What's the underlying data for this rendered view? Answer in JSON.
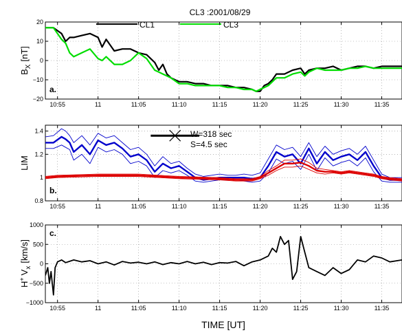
{
  "colors": {
    "cl1": "#000000",
    "cl3": "#00dd00",
    "lim_blue": "#0000cc",
    "lim_red": "#dd0000",
    "vx": "#000000",
    "grid": "#888888"
  },
  "chart_data": [
    {
      "type": "line",
      "panel_label": "a.",
      "title": "CL3 :2001/08/29",
      "ylabel": "B_X [nT]",
      "ylabel_main": "B",
      "ylabel_sub": "X",
      "ylabel_unit": "[nT]",
      "ylim": [
        -20,
        20
      ],
      "yticks": [
        "20",
        "10",
        "0",
        "−10",
        "−20"
      ],
      "ytick_values": [
        20,
        10,
        0,
        -10,
        -20
      ],
      "xticks": [
        "10:55",
        "11",
        "11:05",
        "11:10",
        "11:15",
        "11:20",
        "11:25",
        "11:30",
        "11:35"
      ],
      "xtick_values": [
        0,
        5,
        10,
        15,
        20,
        25,
        30,
        35,
        40
      ],
      "xlim": [
        -1.5,
        42.5
      ],
      "x_unit": "minutes after 10:55 UT",
      "grid": true,
      "legend": [
        "CL1",
        "CL3"
      ],
      "series": [
        {
          "name": "CL1",
          "x": [
            -1.5,
            -0.5,
            0.5,
            1.0,
            1.5,
            2.0,
            3.0,
            4.0,
            5.0,
            5.5,
            6.0,
            7.0,
            8.0,
            9.0,
            10.0,
            11.0,
            12.0,
            12.5,
            13.0,
            13.5,
            14.0,
            15.0,
            16.0,
            17.0,
            18.0,
            19.0,
            20.0,
            21.0,
            22.0,
            23.0,
            24.0,
            24.5,
            25.0,
            25.5,
            26.0,
            26.5,
            27.0,
            28.0,
            29.0,
            30.0,
            30.5,
            31.0,
            32.0,
            33.0,
            34.0,
            35.0,
            36.0,
            37.0,
            38.0,
            39.0,
            40.0,
            41.0,
            42.5
          ],
          "values": [
            17,
            17,
            14,
            10,
            12,
            12,
            13,
            14,
            12,
            7,
            11,
            5,
            6,
            6,
            4,
            3,
            -1,
            -5,
            -2,
            -7,
            -9,
            -11,
            -11,
            -12,
            -12,
            -13,
            -13,
            -13,
            -14,
            -14,
            -15,
            -16,
            -16,
            -13,
            -12,
            -10,
            -7,
            -7,
            -5,
            -4,
            -7,
            -5,
            -4,
            -4,
            -3,
            -5,
            -4,
            -3,
            -3,
            -4,
            -3,
            -3,
            -3
          ]
        },
        {
          "name": "CL3",
          "x": [
            -1.5,
            -0.5,
            0.5,
            1.0,
            1.5,
            2.0,
            3.0,
            4.0,
            5.0,
            5.5,
            6.0,
            7.0,
            8.0,
            9.0,
            10.0,
            11.0,
            12.0,
            12.5,
            13.0,
            13.5,
            14.0,
            15.0,
            16.0,
            17.0,
            18.0,
            19.0,
            20.0,
            21.0,
            22.0,
            23.0,
            24.0,
            24.5,
            25.0,
            25.5,
            26.0,
            26.5,
            27.0,
            28.0,
            29.0,
            30.0,
            30.5,
            31.0,
            32.0,
            33.0,
            34.0,
            35.0,
            36.0,
            37.0,
            38.0,
            39.0,
            40.0,
            41.0,
            42.5
          ],
          "values": [
            17,
            17,
            11,
            9,
            4,
            2,
            4,
            6,
            1,
            0,
            2,
            -2,
            -2,
            0,
            4,
            1,
            -5,
            -6,
            -7,
            -8,
            -9,
            -12,
            -12,
            -13,
            -13,
            -13,
            -13,
            -14,
            -14,
            -15,
            -15,
            -16,
            -15,
            -14,
            -13,
            -11,
            -9,
            -9,
            -7,
            -6,
            -8,
            -6,
            -4,
            -5,
            -5,
            -5,
            -4,
            -4,
            -3,
            -4,
            -4,
            -4,
            -4
          ]
        }
      ]
    },
    {
      "type": "line",
      "panel_label": "b.",
      "ylabel": "LIM",
      "ylim": [
        0.8,
        1.45
      ],
      "yticks": [
        "1.4",
        "1.2",
        "1",
        "0.8"
      ],
      "ytick_values": [
        1.4,
        1.2,
        1.0,
        0.8
      ],
      "xticks": [
        "10:55",
        "11",
        "11:05",
        "11:10",
        "11:15",
        "11:20",
        "11:25",
        "11:30",
        "11:35"
      ],
      "xtick_values": [
        0,
        5,
        10,
        15,
        20,
        25,
        30,
        35,
        40
      ],
      "xlim": [
        -1.5,
        42.5
      ],
      "grid": true,
      "annotations": [
        "W=318 sec",
        "S=4.5 sec"
      ],
      "window_bar": {
        "x_start": 11.5,
        "x_end": 17.5,
        "y": 1.36
      },
      "series": [
        {
          "name": "",
          "role": "blue-main",
          "x": [
            -1.5,
            -0.5,
            0.5,
            1.0,
            1.5,
            2.0,
            3.0,
            4.0,
            5.0,
            6.0,
            7.0,
            8.0,
            9.0,
            10.0,
            11.0,
            12.0,
            13.0,
            14.0,
            15.0,
            16.0,
            17.0,
            18.0,
            19.0,
            20.0,
            21.0,
            22.0,
            23.0,
            24.0,
            25.0,
            26.0,
            27.0,
            28.0,
            29.0,
            30.0,
            31.0,
            32.0,
            33.0,
            34.0,
            35.0,
            36.0,
            37.0,
            38.0,
            39.0,
            40.0,
            41.0,
            42.5
          ],
          "values": [
            1.3,
            1.3,
            1.35,
            1.33,
            1.3,
            1.22,
            1.28,
            1.2,
            1.32,
            1.28,
            1.3,
            1.25,
            1.18,
            1.2,
            1.15,
            1.05,
            1.12,
            1.08,
            1.1,
            1.05,
            1.0,
            0.98,
            0.99,
            1.0,
            1.0,
            1.0,
            1.0,
            0.99,
            1.0,
            1.1,
            1.22,
            1.18,
            1.2,
            1.12,
            1.25,
            1.12,
            1.22,
            1.15,
            1.18,
            1.2,
            1.15,
            1.22,
            1.1,
            1.0,
            0.98,
            0.98
          ]
        },
        {
          "name": "",
          "role": "blue-upper",
          "x": [
            -1.5,
            -0.5,
            0.5,
            1.0,
            1.5,
            2.0,
            3.0,
            4.0,
            5.0,
            6.0,
            7.0,
            8.0,
            9.0,
            10.0,
            11.0,
            12.0,
            13.0,
            14.0,
            15.0,
            16.0,
            17.0,
            18.0,
            19.0,
            20.0,
            21.0,
            22.0,
            23.0,
            24.0,
            25.0,
            26.0,
            27.0,
            28.0,
            29.0,
            30.0,
            31.0,
            32.0,
            33.0,
            34.0,
            35.0,
            36.0,
            37.0,
            38.0,
            39.0,
            40.0,
            41.0,
            42.5
          ],
          "values": [
            1.35,
            1.36,
            1.42,
            1.4,
            1.36,
            1.3,
            1.36,
            1.28,
            1.38,
            1.34,
            1.36,
            1.3,
            1.24,
            1.26,
            1.2,
            1.1,
            1.18,
            1.12,
            1.14,
            1.08,
            1.03,
            1.01,
            1.02,
            1.03,
            1.02,
            1.02,
            1.03,
            1.02,
            1.04,
            1.16,
            1.28,
            1.24,
            1.26,
            1.18,
            1.3,
            1.18,
            1.27,
            1.2,
            1.23,
            1.25,
            1.2,
            1.27,
            1.15,
            1.03,
            1.0,
            1.0
          ]
        },
        {
          "name": "",
          "role": "blue-lower",
          "x": [
            -1.5,
            -0.5,
            0.5,
            1.0,
            1.5,
            2.0,
            3.0,
            4.0,
            5.0,
            6.0,
            7.0,
            8.0,
            9.0,
            10.0,
            11.0,
            12.0,
            13.0,
            14.0,
            15.0,
            16.0,
            17.0,
            18.0,
            19.0,
            20.0,
            21.0,
            22.0,
            23.0,
            24.0,
            25.0,
            26.0,
            27.0,
            28.0,
            29.0,
            30.0,
            31.0,
            32.0,
            33.0,
            34.0,
            35.0,
            36.0,
            37.0,
            38.0,
            39.0,
            40.0,
            41.0,
            42.5
          ],
          "values": [
            1.25,
            1.25,
            1.28,
            1.26,
            1.24,
            1.15,
            1.2,
            1.12,
            1.26,
            1.22,
            1.24,
            1.2,
            1.12,
            1.14,
            1.1,
            1.0,
            1.06,
            1.04,
            1.06,
            1.02,
            0.97,
            0.96,
            0.97,
            0.98,
            0.98,
            0.98,
            0.97,
            0.96,
            0.97,
            1.04,
            1.16,
            1.12,
            1.14,
            1.07,
            1.2,
            1.06,
            1.17,
            1.1,
            1.13,
            1.15,
            1.1,
            1.17,
            1.05,
            0.97,
            0.96,
            0.96
          ]
        },
        {
          "name": "",
          "role": "red-main",
          "x": [
            -1.5,
            0,
            5,
            10,
            15,
            20,
            22,
            24,
            25,
            26,
            27,
            28,
            29,
            30,
            31,
            32,
            33,
            34,
            35,
            36,
            37,
            38,
            39,
            40,
            41,
            42.5
          ],
          "values": [
            1.0,
            1.01,
            1.02,
            1.02,
            1.0,
            0.99,
            0.98,
            0.98,
            1.0,
            1.04,
            1.08,
            1.12,
            1.12,
            1.13,
            1.1,
            1.06,
            1.05,
            1.05,
            1.04,
            1.05,
            1.04,
            1.03,
            1.02,
            1.0,
            0.99,
            0.98
          ]
        },
        {
          "name": "",
          "role": "red-upper",
          "x": [
            -1.5,
            0,
            5,
            10,
            15,
            20,
            22,
            24,
            25,
            26,
            27,
            28,
            29,
            30,
            31,
            32,
            33,
            34,
            35,
            36,
            37,
            38,
            39,
            40,
            41,
            42.5
          ],
          "values": [
            1.01,
            1.02,
            1.03,
            1.03,
            1.01,
            1.0,
            0.99,
            0.99,
            1.01,
            1.06,
            1.1,
            1.15,
            1.15,
            1.16,
            1.13,
            1.08,
            1.07,
            1.06,
            1.05,
            1.06,
            1.05,
            1.04,
            1.03,
            1.01,
            1.0,
            0.99
          ]
        },
        {
          "name": "",
          "role": "red-lower",
          "x": [
            -1.5,
            0,
            5,
            10,
            15,
            20,
            22,
            24,
            25,
            26,
            27,
            28,
            29,
            30,
            31,
            32,
            33,
            34,
            35,
            36,
            37,
            38,
            39,
            40,
            41,
            42.5
          ],
          "values": [
            0.99,
            1.0,
            1.01,
            1.01,
            0.99,
            0.98,
            0.97,
            0.97,
            0.99,
            1.02,
            1.06,
            1.09,
            1.09,
            1.1,
            1.07,
            1.04,
            1.03,
            1.04,
            1.03,
            1.04,
            1.03,
            1.02,
            1.01,
            0.99,
            0.98,
            0.97
          ]
        }
      ]
    },
    {
      "type": "line",
      "panel_label": "c.",
      "ylabel": "H⁺ V_x [km/s]",
      "ylabel_main": "H",
      "ylabel_sup": "+",
      "ylabel_v": "V",
      "ylabel_sub": "x",
      "ylabel_unit": "[km/s]",
      "ylim": [
        -1000,
        1000
      ],
      "yticks": [
        "1000",
        "500",
        "0",
        "−500",
        "−1000"
      ],
      "ytick_values": [
        1000,
        500,
        0,
        -500,
        -1000
      ],
      "xticks": [
        "10:55",
        "11",
        "11:05",
        "11:10",
        "11:15",
        "11:20",
        "11:25",
        "11:30",
        "11:35"
      ],
      "xtick_values": [
        0,
        5,
        10,
        15,
        20,
        25,
        30,
        35,
        40
      ],
      "xlim": [
        -1.5,
        42.5
      ],
      "xlabel": "TIME [UT]",
      "grid": true,
      "series": [
        {
          "name": "",
          "x": [
            -1.5,
            -1.2,
            -1.0,
            -0.8,
            -0.5,
            -0.3,
            0,
            0.5,
            1,
            2,
            3,
            4,
            5,
            6,
            7,
            8,
            9,
            10,
            11,
            12,
            13,
            14,
            15,
            16,
            17,
            18,
            19,
            20,
            21,
            22,
            23,
            24,
            25,
            26,
            26.5,
            27,
            27.5,
            28,
            28.5,
            29,
            29.5,
            30,
            30.5,
            31,
            32,
            33,
            34,
            35,
            36,
            37,
            38,
            39,
            40,
            41,
            42.5
          ],
          "values": [
            -300,
            -100,
            -500,
            -200,
            -800,
            -100,
            50,
            100,
            30,
            100,
            50,
            80,
            0,
            50,
            -30,
            60,
            20,
            40,
            0,
            50,
            -20,
            30,
            0,
            60,
            0,
            40,
            -20,
            30,
            20,
            60,
            -50,
            50,
            100,
            200,
            400,
            300,
            700,
            500,
            600,
            -400,
            -200,
            700,
            300,
            -100,
            -200,
            -300,
            -100,
            -250,
            -150,
            100,
            50,
            200,
            150,
            50,
            100
          ]
        }
      ]
    }
  ]
}
